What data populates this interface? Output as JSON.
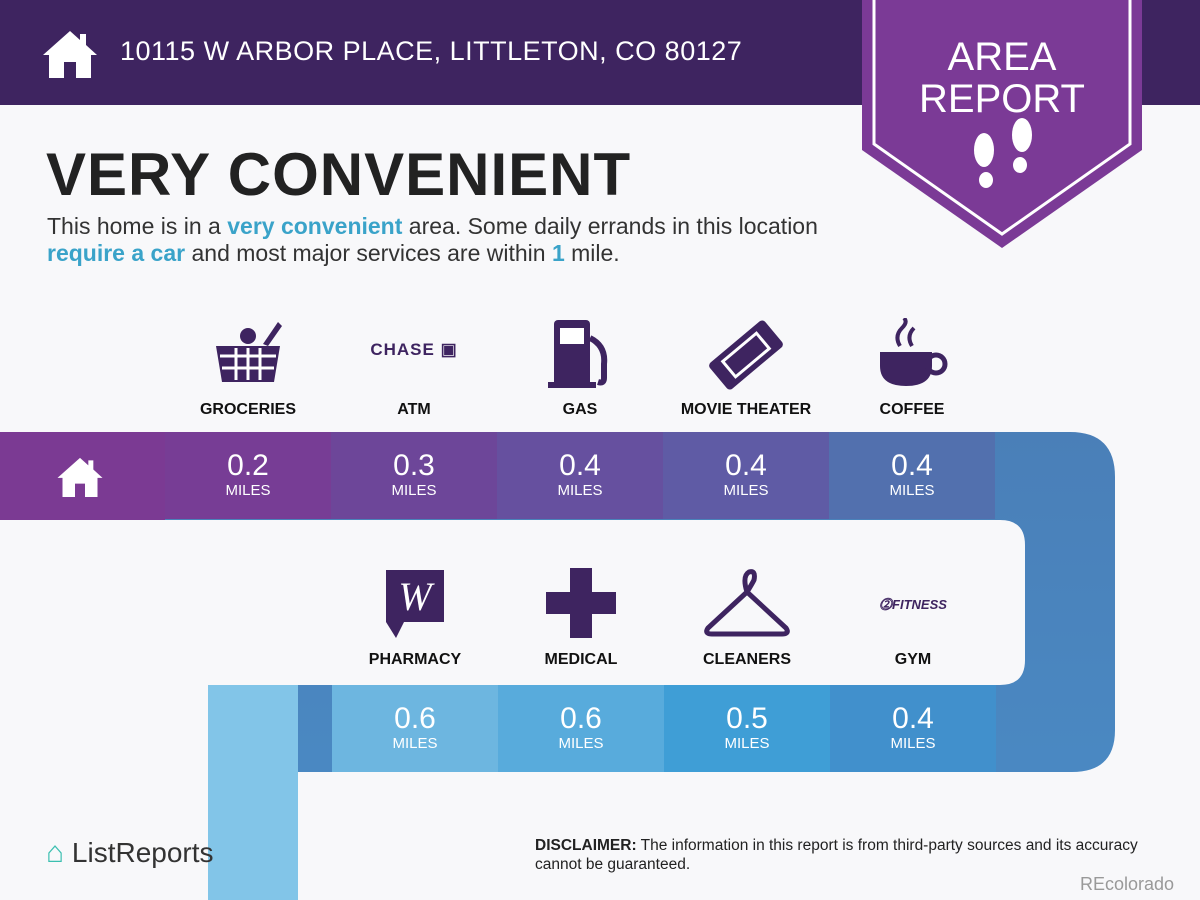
{
  "header": {
    "address": "10115 W ARBOR PLACE, LITTLETON, CO 80127",
    "home_icon": "house-icon"
  },
  "badge": {
    "line1": "AREA",
    "line2": "REPORT",
    "icon": "footprints-icon"
  },
  "title": "VERY CONVENIENT",
  "description": {
    "p1": "This home is in a ",
    "h1": "very convenient",
    "p2": " area. Some daily errands in this location ",
    "h2": "require a car",
    "p3": " and most major services are within ",
    "h3": "1",
    "p4": " mile."
  },
  "colors": {
    "header": "#3e2460",
    "badge": "#7b3a96",
    "accent": "#3aa3c9",
    "icon": "#3e2460"
  },
  "row1": [
    {
      "label": "GROCERIES",
      "value": "0.2",
      "unit": "MILES",
      "icon": "grocery-basket-icon"
    },
    {
      "label": "ATM",
      "value": "0.3",
      "unit": "MILES",
      "icon": "chase-logo",
      "logo_text": "CHASE"
    },
    {
      "label": "GAS",
      "value": "0.4",
      "unit": "MILES",
      "icon": "gas-pump-icon"
    },
    {
      "label": "MOVIE THEATER",
      "value": "0.4",
      "unit": "MILES",
      "icon": "ticket-icon"
    },
    {
      "label": "COFFEE",
      "value": "0.4",
      "unit": "MILES",
      "icon": "coffee-cup-icon"
    }
  ],
  "row2": [
    {
      "label": "PHARMACY",
      "value": "0.6",
      "unit": "MILES",
      "icon": "walgreens-logo"
    },
    {
      "label": "MEDICAL",
      "value": "0.6",
      "unit": "MILES",
      "icon": "medical-cross-icon"
    },
    {
      "label": "CLEANERS",
      "value": "0.5",
      "unit": "MILES",
      "icon": "hanger-icon"
    },
    {
      "label": "GYM",
      "value": "0.4",
      "unit": "MILES",
      "icon": "24-hour-fitness-logo",
      "logo_text": "24 FITNESS"
    }
  ],
  "footer": {
    "logo": "ListReports",
    "disclaimer_label": "DISCLAIMER:",
    "disclaimer": " The information in this report is from third-party sources and its accuracy cannot be guaranteed.",
    "watermark": "REcolorado"
  }
}
